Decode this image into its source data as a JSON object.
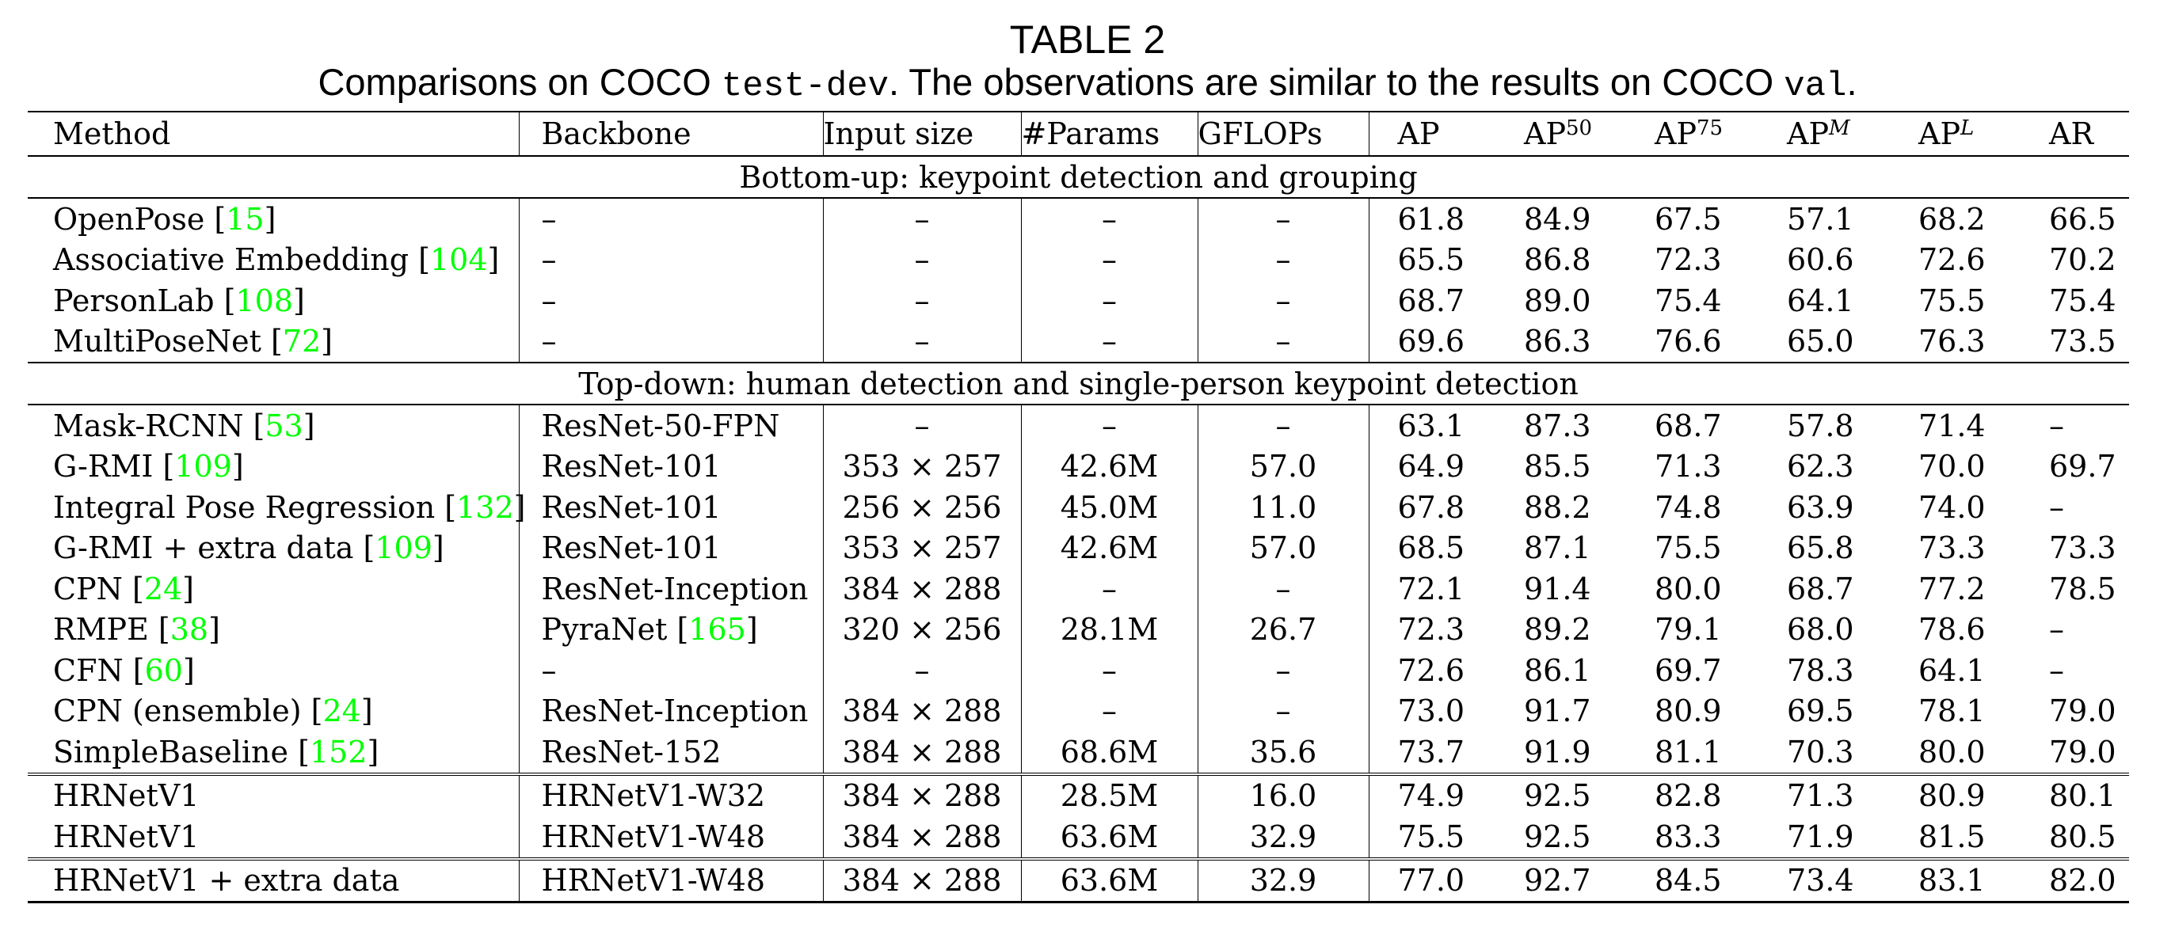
{
  "title": "TABLE 2",
  "caption": {
    "part1": "Comparisons on COCO ",
    "mono1": "test-dev",
    "part2": ". The observations are similar to the results on COCO ",
    "mono2": "val",
    "part3": "."
  },
  "colors": {
    "citation": "#00FF00",
    "text": "#000000"
  },
  "header": {
    "method": "Method",
    "backbone": "Backbone",
    "input_size": "Input size",
    "params": "#Params",
    "gflops": "GFLOPs",
    "ap": "AP",
    "ap50": {
      "base": "AP",
      "sup": "50"
    },
    "ap75": {
      "base": "AP",
      "sup": "75"
    },
    "apm": {
      "base": "AP",
      "sup": "M"
    },
    "apl": {
      "base": "AP",
      "sup": "L"
    },
    "ar": "AR"
  },
  "groups": {
    "bottom_up": "Bottom-up: keypoint detection and grouping",
    "top_down": "Top-down: human detection and single-person keypoint detection"
  },
  "rows": [
    {
      "method": "OpenPose ",
      "cite": "15",
      "backbone": "–",
      "backbone_cite": "",
      "input": "–",
      "params": "–",
      "gflops": "–",
      "ap": "61.8",
      "ap50": "84.9",
      "ap75": "67.5",
      "apm": "57.1",
      "apl": "68.2",
      "ar": "66.5"
    },
    {
      "method": "Associative Embedding ",
      "cite": "104",
      "backbone": "–",
      "backbone_cite": "",
      "input": "–",
      "params": "–",
      "gflops": "–",
      "ap": "65.5",
      "ap50": "86.8",
      "ap75": "72.3",
      "apm": "60.6",
      "apl": "72.6",
      "ar": "70.2"
    },
    {
      "method": "PersonLab ",
      "cite": "108",
      "backbone": "–",
      "backbone_cite": "",
      "input": "–",
      "params": "–",
      "gflops": "–",
      "ap": "68.7",
      "ap50": "89.0",
      "ap75": "75.4",
      "apm": "64.1",
      "apl": "75.5",
      "ar": "75.4"
    },
    {
      "method": "MultiPoseNet ",
      "cite": "72",
      "backbone": "–",
      "backbone_cite": "",
      "input": "–",
      "params": "–",
      "gflops": "–",
      "ap": "69.6",
      "ap50": "86.3",
      "ap75": "76.6",
      "apm": "65.0",
      "apl": "76.3",
      "ar": "73.5"
    },
    {
      "method": "Mask-RCNN ",
      "cite": "53",
      "backbone": "ResNet-50-FPN",
      "backbone_cite": "",
      "input": "–",
      "params": "–",
      "gflops": "–",
      "ap": "63.1",
      "ap50": "87.3",
      "ap75": "68.7",
      "apm": "57.8",
      "apl": "71.4",
      "ar": "–"
    },
    {
      "method": "G-RMI ",
      "cite": "109",
      "backbone": "ResNet-101",
      "backbone_cite": "",
      "input": "353 × 257",
      "params": "42.6M",
      "gflops": "57.0",
      "ap": "64.9",
      "ap50": "85.5",
      "ap75": "71.3",
      "apm": "62.3",
      "apl": "70.0",
      "ar": "69.7"
    },
    {
      "method": "Integral Pose Regression ",
      "cite": "132",
      "backbone": "ResNet-101",
      "backbone_cite": "",
      "input": "256 × 256",
      "params": "45.0M",
      "gflops": "11.0",
      "ap": "67.8",
      "ap50": "88.2",
      "ap75": "74.8",
      "apm": "63.9",
      "apl": "74.0",
      "ar": "–"
    },
    {
      "method": "G-RMI + extra data ",
      "cite": "109",
      "backbone": "ResNet-101",
      "backbone_cite": "",
      "input": "353 × 257",
      "params": "42.6M",
      "gflops": "57.0",
      "ap": "68.5",
      "ap50": "87.1",
      "ap75": "75.5",
      "apm": "65.8",
      "apl": "73.3",
      "ar": "73.3"
    },
    {
      "method": "CPN ",
      "cite": "24",
      "backbone": "ResNet-Inception",
      "backbone_cite": "",
      "input": "384 × 288",
      "params": "–",
      "gflops": "–",
      "ap": "72.1",
      "ap50": "91.4",
      "ap75": "80.0",
      "apm": "68.7",
      "apl": "77.2",
      "ar": "78.5"
    },
    {
      "method": "RMPE ",
      "cite": "38",
      "backbone": "PyraNet ",
      "backbone_cite": "165",
      "input": "320 × 256",
      "params": "28.1M",
      "gflops": "26.7",
      "ap": "72.3",
      "ap50": "89.2",
      "ap75": "79.1",
      "apm": "68.0",
      "apl": "78.6",
      "ar": "–"
    },
    {
      "method": "CFN ",
      "cite": "60",
      "backbone": "–",
      "backbone_cite": "",
      "input": "–",
      "params": "–",
      "gflops": "–",
      "ap": "72.6",
      "ap50": "86.1",
      "ap75": "69.7",
      "apm": "78.3",
      "apl": "64.1",
      "ar": "–"
    },
    {
      "method": "CPN (ensemble) ",
      "cite": "24",
      "backbone": "ResNet-Inception",
      "backbone_cite": "",
      "input": "384 × 288",
      "params": "–",
      "gflops": "–",
      "ap": "73.0",
      "ap50": "91.7",
      "ap75": "80.9",
      "apm": "69.5",
      "apl": "78.1",
      "ar": "79.0"
    },
    {
      "method": "SimpleBaseline ",
      "cite": "152",
      "backbone": "ResNet-152",
      "backbone_cite": "",
      "input": "384 × 288",
      "params": "68.6M",
      "gflops": "35.6",
      "ap": "73.7",
      "ap50": "91.9",
      "ap75": "81.1",
      "apm": "70.3",
      "apl": "80.0",
      "ar": "79.0"
    },
    {
      "method": "HRNetV1",
      "cite": "",
      "backbone": "HRNetV1-W32",
      "backbone_cite": "",
      "input": "384 × 288",
      "params": "28.5M",
      "gflops": "16.0",
      "ap": "74.9",
      "ap50": "92.5",
      "ap75": "82.8",
      "apm": "71.3",
      "apl": "80.9",
      "ar": "80.1"
    },
    {
      "method": "HRNetV1",
      "cite": "",
      "backbone": "HRNetV1-W48",
      "backbone_cite": "",
      "input": "384 × 288",
      "params": "63.6M",
      "gflops": "32.9",
      "ap": "75.5",
      "ap50": "92.5",
      "ap75": "83.3",
      "apm": "71.9",
      "apl": "81.5",
      "ar": "80.5"
    },
    {
      "method": "HRNetV1 + extra data",
      "cite": "",
      "backbone": "HRNetV1-W48",
      "backbone_cite": "",
      "input": "384 × 288",
      "params": "63.6M",
      "gflops": "32.9",
      "ap": "77.0",
      "ap50": "92.7",
      "ap75": "84.5",
      "apm": "73.4",
      "apl": "83.1",
      "ar": "82.0"
    }
  ],
  "chart_data": {
    "type": "table",
    "title": "TABLE 2",
    "subtitle": "Comparisons on COCO test-dev. The observations are similar to the results on COCO val.",
    "columns": [
      "Method",
      "Backbone",
      "Input size",
      "#Params",
      "GFLOPs",
      "AP",
      "AP^50",
      "AP^75",
      "AP^M",
      "AP^L",
      "AR"
    ],
    "sections": [
      {
        "name": "Bottom-up: keypoint detection and grouping",
        "rows": [
          [
            "OpenPose [15]",
            "–",
            "–",
            "–",
            "–",
            61.8,
            84.9,
            67.5,
            57.1,
            68.2,
            66.5
          ],
          [
            "Associative Embedding [104]",
            "–",
            "–",
            "–",
            "–",
            65.5,
            86.8,
            72.3,
            60.6,
            72.6,
            70.2
          ],
          [
            "PersonLab [108]",
            "–",
            "–",
            "–",
            "–",
            68.7,
            89.0,
            75.4,
            64.1,
            75.5,
            75.4
          ],
          [
            "MultiPoseNet [72]",
            "–",
            "–",
            "–",
            "–",
            69.6,
            86.3,
            76.6,
            65.0,
            76.3,
            73.5
          ]
        ]
      },
      {
        "name": "Top-down: human detection and single-person keypoint detection",
        "rows": [
          [
            "Mask-RCNN [53]",
            "ResNet-50-FPN",
            "–",
            "–",
            "–",
            63.1,
            87.3,
            68.7,
            57.8,
            71.4,
            "–"
          ],
          [
            "G-RMI [109]",
            "ResNet-101",
            "353 × 257",
            "42.6M",
            57.0,
            64.9,
            85.5,
            71.3,
            62.3,
            70.0,
            69.7
          ],
          [
            "Integral Pose Regression [132]",
            "ResNet-101",
            "256 × 256",
            "45.0M",
            11.0,
            67.8,
            88.2,
            74.8,
            63.9,
            74.0,
            "–"
          ],
          [
            "G-RMI + extra data [109]",
            "ResNet-101",
            "353 × 257",
            "42.6M",
            57.0,
            68.5,
            87.1,
            75.5,
            65.8,
            73.3,
            73.3
          ],
          [
            "CPN [24]",
            "ResNet-Inception",
            "384 × 288",
            "–",
            "–",
            72.1,
            91.4,
            80.0,
            68.7,
            77.2,
            78.5
          ],
          [
            "RMPE [38]",
            "PyraNet [165]",
            "320 × 256",
            "28.1M",
            26.7,
            72.3,
            89.2,
            79.1,
            68.0,
            78.6,
            "–"
          ],
          [
            "CFN [60]",
            "–",
            "–",
            "–",
            "–",
            72.6,
            86.1,
            69.7,
            78.3,
            64.1,
            "–"
          ],
          [
            "CPN (ensemble) [24]",
            "ResNet-Inception",
            "384 × 288",
            "–",
            "–",
            73.0,
            91.7,
            80.9,
            69.5,
            78.1,
            79.0
          ],
          [
            "SimpleBaseline [152]",
            "ResNet-152",
            "384 × 288",
            "68.6M",
            35.6,
            73.7,
            91.9,
            81.1,
            70.3,
            80.0,
            79.0
          ],
          [
            "HRNetV1",
            "HRNetV1-W32",
            "384 × 288",
            "28.5M",
            16.0,
            74.9,
            92.5,
            82.8,
            71.3,
            80.9,
            80.1
          ],
          [
            "HRNetV1",
            "HRNetV1-W48",
            "384 × 288",
            "63.6M",
            32.9,
            75.5,
            92.5,
            83.3,
            71.9,
            81.5,
            80.5
          ],
          [
            "HRNetV1 + extra data",
            "HRNetV1-W48",
            "384 × 288",
            "63.6M",
            32.9,
            77.0,
            92.7,
            84.5,
            73.4,
            83.1,
            82.0
          ]
        ]
      }
    ],
    "bold_row": "HRNetV1 + extra data (AP columns)"
  }
}
